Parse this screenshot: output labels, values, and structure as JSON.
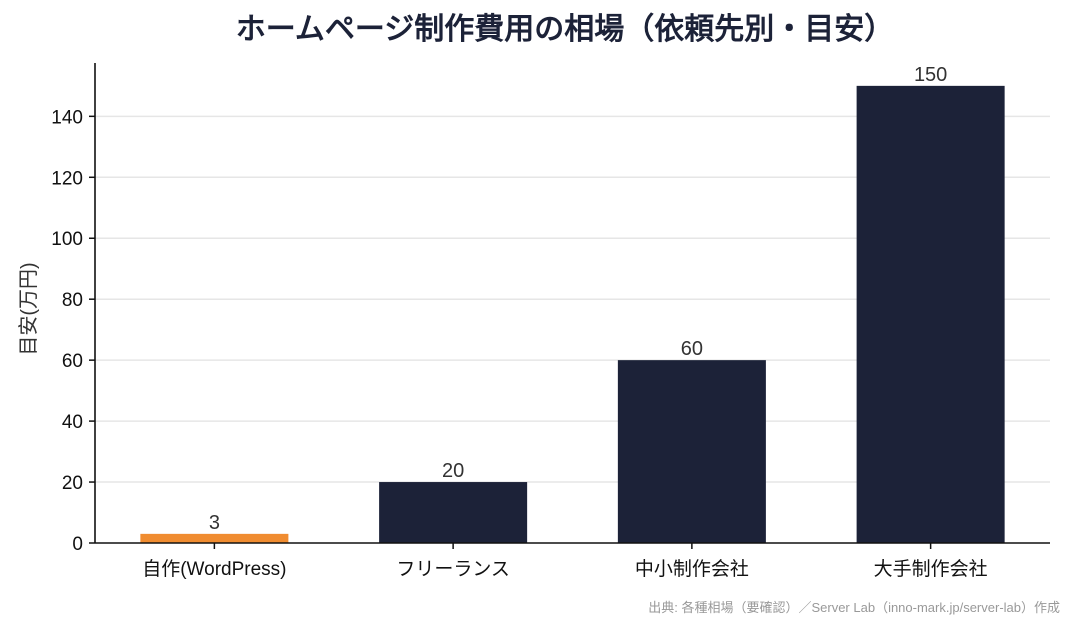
{
  "chart_data": {
    "type": "bar",
    "title": "ホームページ制作費用の相場（依頼先別・目安）",
    "xlabel": "",
    "ylabel": "目安(万円)",
    "categories": [
      "自作(WordPress)",
      "フリーランス",
      "中小制作会社",
      "大手制作会社"
    ],
    "values": [
      3,
      20,
      60,
      150
    ],
    "data_labels": [
      "3",
      "20",
      "60",
      "150"
    ],
    "bar_colors": [
      "#f08c30",
      "#1c2238",
      "#1c2238",
      "#1c2238"
    ],
    "ylim": [
      0,
      157.5
    ],
    "yticks": [
      0,
      20,
      40,
      60,
      80,
      100,
      120,
      140
    ],
    "grid": "horizontal",
    "legend": "none",
    "source": "出典: 各種相場（要確認）／Server Lab（inno-mark.jp/server-lab）作成"
  }
}
